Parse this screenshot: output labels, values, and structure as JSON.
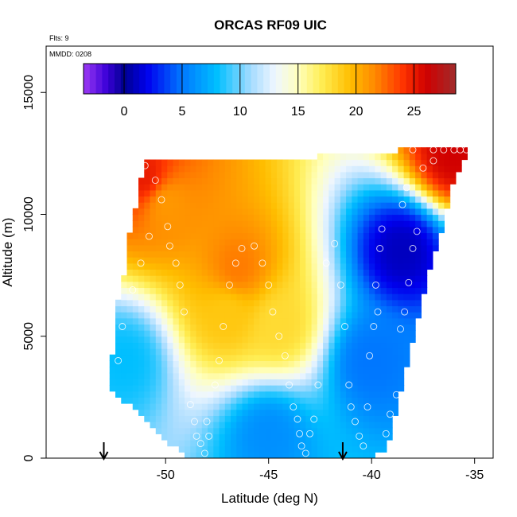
{
  "chart_data": {
    "type": "heatmap",
    "title": "ORCAS RF09 UIC",
    "annotations": {
      "flights": "Flts: 9",
      "mmdd": "MMDD: 0208"
    },
    "xlabel": "Latitude (deg N)",
    "ylabel": "Altitude (m)",
    "xlim": [
      -55.8,
      -34.1
    ],
    "ylim": [
      0,
      16900
    ],
    "x_ticks": [
      -50,
      -45,
      -40,
      -35
    ],
    "y_ticks": [
      0,
      5000,
      10000,
      15000
    ],
    "colorbar": {
      "range": [
        -3.5,
        28.6
      ],
      "ticks": [
        0,
        5,
        10,
        15,
        20,
        25
      ],
      "stops": [
        {
          "v": -3.5,
          "c": "#9d3af4"
        },
        {
          "v": -1.5,
          "c": "#3b00d8"
        },
        {
          "v": 0,
          "c": "#000090"
        },
        {
          "v": 2,
          "c": "#0000ee"
        },
        {
          "v": 5,
          "c": "#0077ff"
        },
        {
          "v": 8,
          "c": "#00bfff"
        },
        {
          "v": 11,
          "c": "#a8dcff"
        },
        {
          "v": 13,
          "c": "#eef6ff"
        },
        {
          "v": 15,
          "c": "#ffffbe"
        },
        {
          "v": 17,
          "c": "#ffee55"
        },
        {
          "v": 19.5,
          "c": "#ffbe00"
        },
        {
          "v": 21.5,
          "c": "#ff8c00"
        },
        {
          "v": 24,
          "c": "#ff3500"
        },
        {
          "v": 26,
          "c": "#d00000"
        },
        {
          "v": 28.6,
          "c": "#a02b2b"
        }
      ]
    },
    "field_regions": [
      {
        "lat": -51,
        "alt": 11500,
        "value": 25
      },
      {
        "lat": -50,
        "alt": 10500,
        "value": 21
      },
      {
        "lat": -46.5,
        "alt": 7800,
        "value": 22
      },
      {
        "lat": -47,
        "alt": 6000,
        "value": 19
      },
      {
        "lat": -44.5,
        "alt": 5500,
        "value": 18
      },
      {
        "lat": -52,
        "alt": 4000,
        "value": 8
      },
      {
        "lat": -45,
        "alt": 1000,
        "value": 6
      },
      {
        "lat": -38.5,
        "alt": 8500,
        "value": 1
      },
      {
        "lat": -40,
        "alt": 4000,
        "value": 5
      },
      {
        "lat": -36,
        "alt": 12500,
        "value": 26
      }
    ],
    "sample_points": [
      {
        "lat": -52.3,
        "alt": 4000
      },
      {
        "lat": -52.1,
        "alt": 5400
      },
      {
        "lat": -51.6,
        "alt": 6900
      },
      {
        "lat": -51.2,
        "alt": 8000
      },
      {
        "lat": -50.8,
        "alt": 9100
      },
      {
        "lat": -51.0,
        "alt": 12000
      },
      {
        "lat": -50.5,
        "alt": 11400
      },
      {
        "lat": -50.2,
        "alt": 10600
      },
      {
        "lat": -49.9,
        "alt": 9500
      },
      {
        "lat": -49.8,
        "alt": 8700
      },
      {
        "lat": -49.5,
        "alt": 8000
      },
      {
        "lat": -49.3,
        "alt": 7100
      },
      {
        "lat": -49.1,
        "alt": 6000
      },
      {
        "lat": -48.8,
        "alt": 2200
      },
      {
        "lat": -48.6,
        "alt": 1500
      },
      {
        "lat": -48.5,
        "alt": 900
      },
      {
        "lat": -48.3,
        "alt": 600
      },
      {
        "lat": -48.0,
        "alt": 1500
      },
      {
        "lat": -47.9,
        "alt": 900
      },
      {
        "lat": -48.1,
        "alt": 200
      },
      {
        "lat": -47.6,
        "alt": 3000
      },
      {
        "lat": -47.4,
        "alt": 4000
      },
      {
        "lat": -47.2,
        "alt": 5400
      },
      {
        "lat": -46.9,
        "alt": 7100
      },
      {
        "lat": -46.6,
        "alt": 8000
      },
      {
        "lat": -46.3,
        "alt": 8600
      },
      {
        "lat": -45.7,
        "alt": 8700
      },
      {
        "lat": -45.3,
        "alt": 8000
      },
      {
        "lat": -45.0,
        "alt": 7100
      },
      {
        "lat": -44.8,
        "alt": 6000
      },
      {
        "lat": -44.5,
        "alt": 5000
      },
      {
        "lat": -44.2,
        "alt": 4200
      },
      {
        "lat": -44.0,
        "alt": 3000
      },
      {
        "lat": -43.8,
        "alt": 2100
      },
      {
        "lat": -43.6,
        "alt": 1600
      },
      {
        "lat": -43.5,
        "alt": 1000
      },
      {
        "lat": -43.4,
        "alt": 500
      },
      {
        "lat": -43.2,
        "alt": 200
      },
      {
        "lat": -43.0,
        "alt": 1000
      },
      {
        "lat": -42.8,
        "alt": 1600
      },
      {
        "lat": -42.6,
        "alt": 3000
      },
      {
        "lat": -42.2,
        "alt": 8000
      },
      {
        "lat": -41.8,
        "alt": 8800
      },
      {
        "lat": -41.5,
        "alt": 7100
      },
      {
        "lat": -41.3,
        "alt": 5400
      },
      {
        "lat": -41.1,
        "alt": 3000
      },
      {
        "lat": -41.0,
        "alt": 2100
      },
      {
        "lat": -40.8,
        "alt": 1500
      },
      {
        "lat": -40.6,
        "alt": 900
      },
      {
        "lat": -40.4,
        "alt": 500
      },
      {
        "lat": -40.2,
        "alt": 2100
      },
      {
        "lat": -40.1,
        "alt": 4200
      },
      {
        "lat": -39.9,
        "alt": 5400
      },
      {
        "lat": -39.7,
        "alt": 6000
      },
      {
        "lat": -39.8,
        "alt": 7100
      },
      {
        "lat": -39.6,
        "alt": 8600
      },
      {
        "lat": -39.5,
        "alt": 9400
      },
      {
        "lat": -39.3,
        "alt": 1000
      },
      {
        "lat": -39.1,
        "alt": 1800
      },
      {
        "lat": -38.8,
        "alt": 2600
      },
      {
        "lat": -38.6,
        "alt": 5300
      },
      {
        "lat": -38.4,
        "alt": 6000
      },
      {
        "lat": -38.2,
        "alt": 7200
      },
      {
        "lat": -38.0,
        "alt": 8600
      },
      {
        "lat": -37.8,
        "alt": 9300
      },
      {
        "lat": -38.5,
        "alt": 10400
      },
      {
        "lat": -38.3,
        "alt": 11100
      },
      {
        "lat": -37.5,
        "alt": 11900
      },
      {
        "lat": -37.0,
        "alt": 12200
      },
      {
        "lat": -38.0,
        "alt": 12650
      },
      {
        "lat": -37.0,
        "alt": 12650
      },
      {
        "lat": -36.5,
        "alt": 12650
      },
      {
        "lat": -36.0,
        "alt": 12650
      },
      {
        "lat": -35.7,
        "alt": 12650
      },
      {
        "lat": -35.4,
        "alt": 12650
      }
    ],
    "markers": [
      {
        "lat": -53.0,
        "label": "arrow"
      },
      {
        "lat": -41.4,
        "label": "arrow"
      }
    ]
  }
}
